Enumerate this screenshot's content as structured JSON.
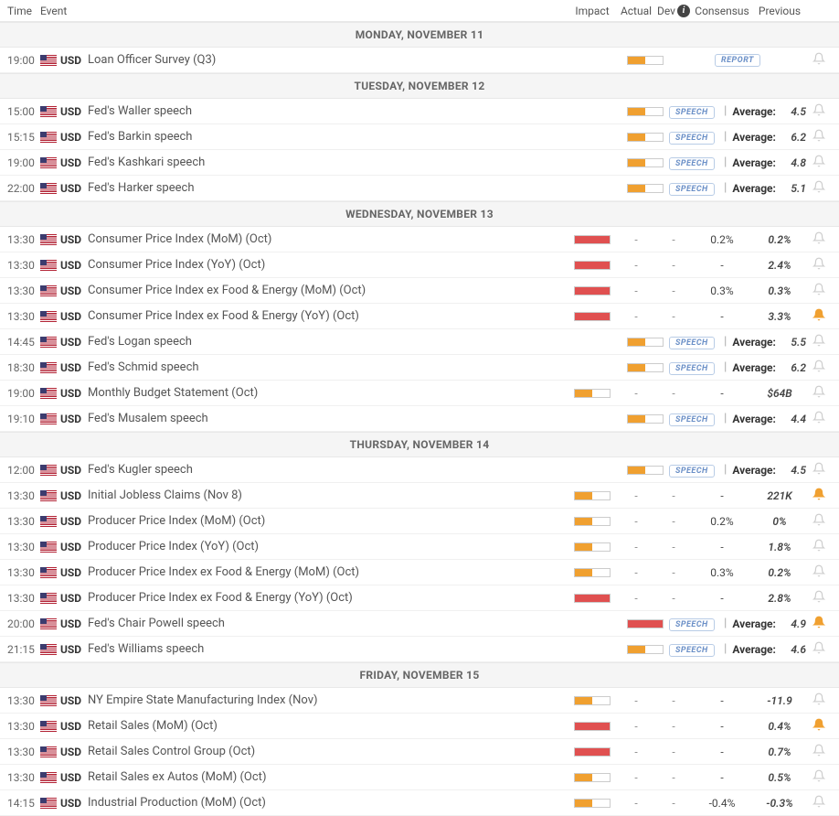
{
  "headers": {
    "time": "Time",
    "event": "Event",
    "impact": "Impact",
    "actual": "Actual",
    "dev": "Dev",
    "consensus": "Consensus",
    "previous": "Previous"
  },
  "badges": {
    "report": "REPORT",
    "speech": "SPEECH",
    "average_label": "Average:"
  },
  "colors": {
    "impact_medium": "#f0a030",
    "impact_high": "#e05050",
    "bell_active": "#f0a030",
    "bell_inactive": "#cccccc",
    "badge_text": "#6a8fc7",
    "badge_border": "#b8cce6",
    "day_header_bg": "#f5f5f5",
    "row_border": "#f0f0f0"
  },
  "days": [
    {
      "label": "MONDAY, NOVEMBER 11",
      "events": [
        {
          "time": "19:00",
          "currency": "USD",
          "name": "Loan Officer Survey (Q3)",
          "impact": "medium",
          "kind": "report",
          "bell": false
        }
      ]
    },
    {
      "label": "TUESDAY, NOVEMBER 12",
      "events": [
        {
          "time": "15:00",
          "currency": "USD",
          "name": "Fed's Waller speech",
          "impact": "medium",
          "kind": "speech",
          "average": "4.5",
          "bell": false
        },
        {
          "time": "15:15",
          "currency": "USD",
          "name": "Fed's Barkin speech",
          "impact": "medium",
          "kind": "speech",
          "average": "6.2",
          "bell": false
        },
        {
          "time": "19:00",
          "currency": "USD",
          "name": "Fed's Kashkari speech",
          "impact": "medium",
          "kind": "speech",
          "average": "4.8",
          "bell": false
        },
        {
          "time": "22:00",
          "currency": "USD",
          "name": "Fed's Harker speech",
          "impact": "medium",
          "kind": "speech",
          "average": "5.1",
          "bell": false
        }
      ]
    },
    {
      "label": "WEDNESDAY, NOVEMBER 13",
      "events": [
        {
          "time": "13:30",
          "currency": "USD",
          "name": "Consumer Price Index (MoM) (Oct)",
          "impact": "high",
          "kind": "data",
          "actual": "-",
          "dev": "-",
          "consensus": "0.2%",
          "previous": "0.2%",
          "bell": false
        },
        {
          "time": "13:30",
          "currency": "USD",
          "name": "Consumer Price Index (YoY) (Oct)",
          "impact": "high",
          "kind": "data",
          "actual": "-",
          "dev": "-",
          "consensus": "-",
          "previous": "2.4%",
          "bell": false
        },
        {
          "time": "13:30",
          "currency": "USD",
          "name": "Consumer Price Index ex Food & Energy (MoM) (Oct)",
          "impact": "high",
          "kind": "data",
          "actual": "-",
          "dev": "-",
          "consensus": "0.3%",
          "previous": "0.3%",
          "bell": false
        },
        {
          "time": "13:30",
          "currency": "USD",
          "name": "Consumer Price Index ex Food & Energy (YoY) (Oct)",
          "impact": "high",
          "kind": "data",
          "actual": "-",
          "dev": "-",
          "consensus": "-",
          "previous": "3.3%",
          "bell": true
        },
        {
          "time": "14:45",
          "currency": "USD",
          "name": "Fed's Logan speech",
          "impact": "medium",
          "kind": "speech",
          "average": "5.5",
          "bell": false
        },
        {
          "time": "18:30",
          "currency": "USD",
          "name": "Fed's Schmid speech",
          "impact": "medium",
          "kind": "speech",
          "average": "6.2",
          "bell": false
        },
        {
          "time": "19:00",
          "currency": "USD",
          "name": "Monthly Budget Statement (Oct)",
          "impact": "medium",
          "kind": "data",
          "actual": "-",
          "dev": "-",
          "consensus": "-",
          "previous": "$64B",
          "bell": false
        },
        {
          "time": "19:10",
          "currency": "USD",
          "name": "Fed's Musalem speech",
          "impact": "medium",
          "kind": "speech",
          "average": "4.4",
          "bell": false
        }
      ]
    },
    {
      "label": "THURSDAY, NOVEMBER 14",
      "events": [
        {
          "time": "12:00",
          "currency": "USD",
          "name": "Fed's Kugler speech",
          "impact": "medium",
          "kind": "speech",
          "average": "4.5",
          "bell": false
        },
        {
          "time": "13:30",
          "currency": "USD",
          "name": "Initial Jobless Claims (Nov 8)",
          "impact": "medium",
          "kind": "data",
          "actual": "-",
          "dev": "-",
          "consensus": "-",
          "previous": "221K",
          "bell": true
        },
        {
          "time": "13:30",
          "currency": "USD",
          "name": "Producer Price Index (MoM) (Oct)",
          "impact": "medium",
          "kind": "data",
          "actual": "-",
          "dev": "-",
          "consensus": "0.2%",
          "previous": "0%",
          "bell": false
        },
        {
          "time": "13:30",
          "currency": "USD",
          "name": "Producer Price Index (YoY) (Oct)",
          "impact": "medium",
          "kind": "data",
          "actual": "-",
          "dev": "-",
          "consensus": "-",
          "previous": "1.8%",
          "bell": false
        },
        {
          "time": "13:30",
          "currency": "USD",
          "name": "Producer Price Index ex Food & Energy (MoM) (Oct)",
          "impact": "medium",
          "kind": "data",
          "actual": "-",
          "dev": "-",
          "consensus": "0.3%",
          "previous": "0.2%",
          "bell": false
        },
        {
          "time": "13:30",
          "currency": "USD",
          "name": "Producer Price Index ex Food & Energy (YoY) (Oct)",
          "impact": "high",
          "kind": "data",
          "actual": "-",
          "dev": "-",
          "consensus": "-",
          "previous": "2.8%",
          "bell": false
        },
        {
          "time": "20:00",
          "currency": "USD",
          "name": "Fed's Chair Powell speech",
          "impact": "high",
          "kind": "speech",
          "average": "4.9",
          "bell": true
        },
        {
          "time": "21:15",
          "currency": "USD",
          "name": "Fed's Williams speech",
          "impact": "medium",
          "kind": "speech",
          "average": "4.6",
          "bell": false
        }
      ]
    },
    {
      "label": "FRIDAY, NOVEMBER 15",
      "events": [
        {
          "time": "13:30",
          "currency": "USD",
          "name": "NY Empire State Manufacturing Index (Nov)",
          "impact": "medium",
          "kind": "data",
          "actual": "-",
          "dev": "-",
          "consensus": "-",
          "previous": "-11.9",
          "bell": false
        },
        {
          "time": "13:30",
          "currency": "USD",
          "name": "Retail Sales (MoM) (Oct)",
          "impact": "high",
          "kind": "data",
          "actual": "-",
          "dev": "-",
          "consensus": "-",
          "previous": "0.4%",
          "bell": true
        },
        {
          "time": "13:30",
          "currency": "USD",
          "name": "Retail Sales Control Group (Oct)",
          "impact": "high",
          "kind": "data",
          "actual": "-",
          "dev": "-",
          "consensus": "-",
          "previous": "0.7%",
          "bell": false
        },
        {
          "time": "13:30",
          "currency": "USD",
          "name": "Retail Sales ex Autos (MoM) (Oct)",
          "impact": "medium",
          "kind": "data",
          "actual": "-",
          "dev": "-",
          "consensus": "-",
          "previous": "0.5%",
          "bell": false
        },
        {
          "time": "14:15",
          "currency": "USD",
          "name": "Industrial Production (MoM) (Oct)",
          "impact": "medium",
          "kind": "data",
          "actual": "-",
          "dev": "-",
          "consensus": "-0.4%",
          "previous": "-0.3%",
          "bell": false
        }
      ]
    }
  ]
}
